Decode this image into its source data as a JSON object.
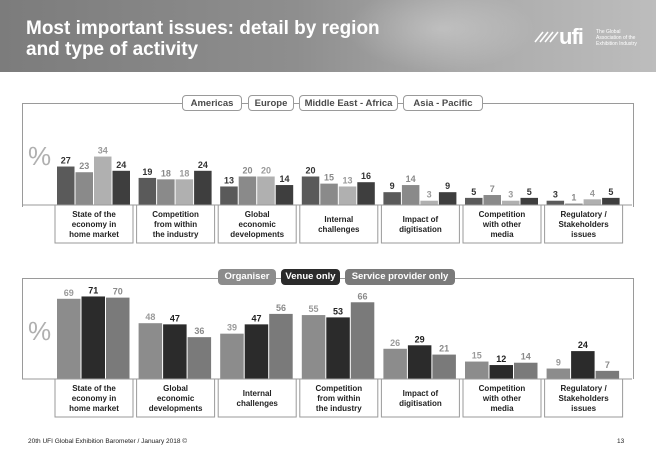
{
  "header": {
    "title_line1": "Most important issues: detail by region",
    "title_line2": "and type of activity",
    "logo_word": "ufi",
    "logo_tagline": "The Global Association of the Exhibition Industry"
  },
  "percent_symbol": "%",
  "legend_top": {
    "items": [
      {
        "label": "Americas",
        "color": "#ffffff"
      },
      {
        "label": "Europe",
        "color": "#ffffff"
      },
      {
        "label": "Middle East - Africa",
        "color": "#ffffff"
      },
      {
        "label": "Asia - Pacific",
        "color": "#ffffff"
      }
    ]
  },
  "legend_bottom": {
    "items": [
      {
        "label": "Organiser",
        "color": "#8c8c8c"
      },
      {
        "label": "Venue only",
        "color": "#2b2b2b"
      },
      {
        "label": "Service provider only",
        "color": "#7a7a7a"
      }
    ]
  },
  "footer": {
    "source": "20th UFI Global Exhibition Barometer / January 2018 ©",
    "page": "13"
  },
  "chart_data": [
    {
      "type": "bar",
      "title": "Most important issues by region",
      "ylabel": "%",
      "ylim": [
        0,
        40
      ],
      "categories": [
        "State of the economy in home market",
        "Competition from within the industry",
        "Global economic developments",
        "Internal challenges",
        "Impact of digitisation",
        "Competition with other media",
        "Regulatory / Stakeholders issues"
      ],
      "category_lines": [
        [
          "State of the",
          "economy in",
          "home market"
        ],
        [
          "Competition",
          "from within",
          "the industry"
        ],
        [
          "Global",
          "economic",
          "developments"
        ],
        [
          "Internal",
          "challenges"
        ],
        [
          "Impact of",
          "digitisation"
        ],
        [
          "Competition",
          "with other",
          "media"
        ],
        [
          "Regulatory /",
          "Stakeholders",
          "issues"
        ]
      ],
      "series": [
        {
          "name": "Americas",
          "color": "#5a5a5a",
          "label_color": "#333333",
          "values": [
            27,
            19,
            13,
            20,
            9,
            5,
            3
          ]
        },
        {
          "name": "Europe",
          "color": "#8a8a8a",
          "label_color": "#8a8a8a",
          "values": [
            23,
            18,
            20,
            15,
            14,
            7,
            1
          ]
        },
        {
          "name": "Middle East - Africa",
          "color": "#b0b0b0",
          "label_color": "#9a9a9a",
          "values": [
            34,
            18,
            20,
            13,
            3,
            3,
            4
          ]
        },
        {
          "name": "Asia - Pacific",
          "color": "#3e3e3e",
          "label_color": "#333333",
          "values": [
            24,
            24,
            14,
            16,
            9,
            5,
            5
          ]
        }
      ]
    },
    {
      "type": "bar",
      "title": "Most important issues by type of activity",
      "ylabel": "%",
      "ylim": [
        0,
        80
      ],
      "categories": [
        "State of the economy in home market",
        "Global economic developments",
        "Internal challenges",
        "Competition from within the industry",
        "Impact of digitisation",
        "Competition with other media",
        "Regulatory / Stakeholders issues"
      ],
      "category_lines": [
        [
          "State of the",
          "economy in",
          "home market"
        ],
        [
          "Global",
          "economic",
          "developments"
        ],
        [
          "Internal",
          "challenges"
        ],
        [
          "Competition",
          "from within",
          "the industry"
        ],
        [
          "Impact of",
          "digitisation"
        ],
        [
          "Competition",
          "with other",
          "media"
        ],
        [
          "Regulatory /",
          "Stakeholders",
          "issues"
        ]
      ],
      "series": [
        {
          "name": "Organiser",
          "color": "#8c8c8c",
          "label_color": "#9a9a9a",
          "values": [
            69,
            48,
            39,
            55,
            26,
            15,
            9
          ]
        },
        {
          "name": "Venue only",
          "color": "#2b2b2b",
          "label_color": "#222222",
          "values": [
            71,
            47,
            47,
            53,
            29,
            12,
            24
          ]
        },
        {
          "name": "Service provider only",
          "color": "#7a7a7a",
          "label_color": "#8a8a8a",
          "values": [
            70,
            36,
            56,
            66,
            21,
            14,
            7
          ]
        }
      ]
    }
  ]
}
